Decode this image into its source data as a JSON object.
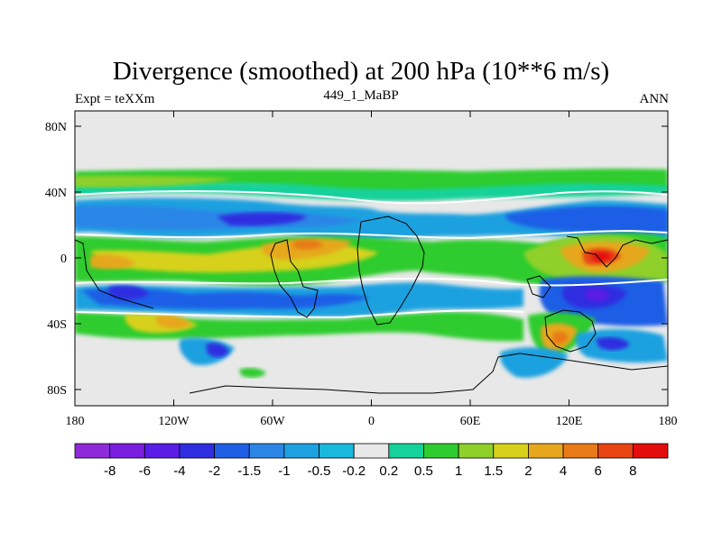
{
  "title": "Divergence (smoothed) at 200 hPa (10**6 m/s)",
  "left_string": "Expt = teXXm",
  "center_string": "449_1_MaBP",
  "right_string": "ANN",
  "y_ticks": [
    "80N",
    "40N",
    "0",
    "40S",
    "80S"
  ],
  "x_ticks": [
    "180",
    "120W",
    "60W",
    "0",
    "60E",
    "120E",
    "180"
  ],
  "colorbar": {
    "labels": [
      "-8",
      "-6",
      "-4",
      "-2",
      "-1.5",
      "-1",
      "-0.5",
      "-0.2",
      "0.2",
      "0.5",
      "1",
      "1.5",
      "2",
      "4",
      "6",
      "8"
    ],
    "colors": [
      "#8f2ad8",
      "#7a1fe0",
      "#5a1de6",
      "#2e2ee0",
      "#1f5fe6",
      "#2b86e6",
      "#1ea1e0",
      "#1ab8dc",
      "#e8e8e8",
      "#15d19a",
      "#2fcc2f",
      "#8fd02b",
      "#d7d11c",
      "#e6a71f",
      "#e87a17",
      "#e84512",
      "#e40d0d"
    ]
  },
  "colors": {
    "no_data": "#e8e8e8",
    "coastline": "#000000",
    "zero_contour": "#ffffff"
  }
}
